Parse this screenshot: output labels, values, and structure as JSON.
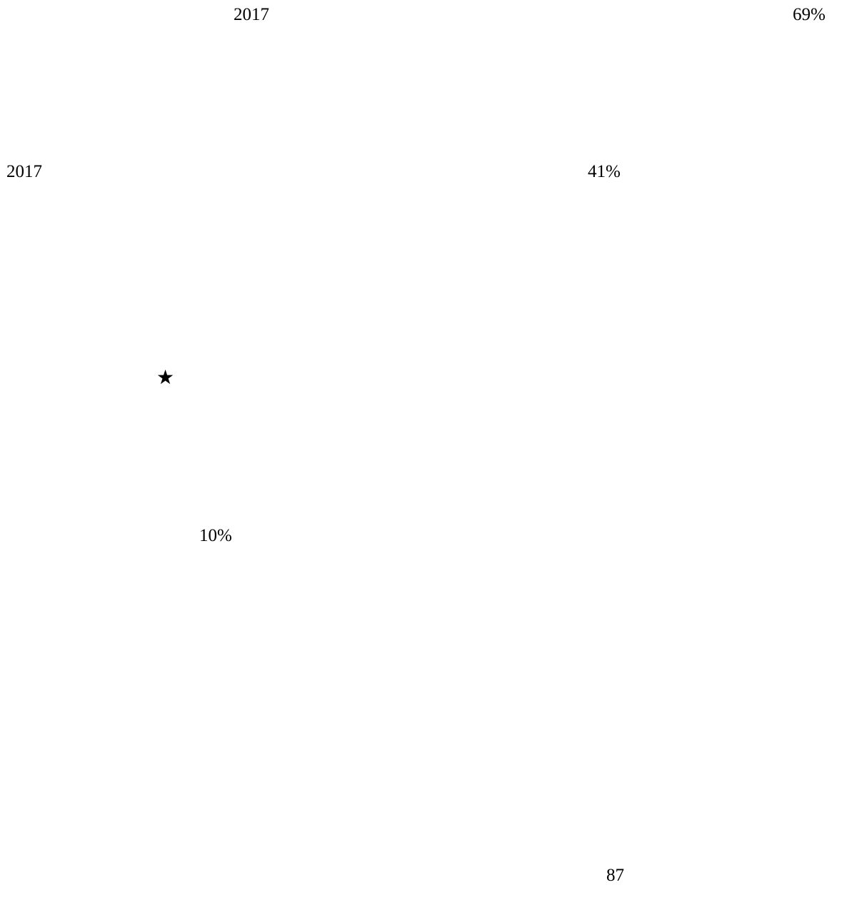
{
  "page": {
    "year_top": "2017",
    "percent_top_right": "69%",
    "year_left": "2017",
    "percent_middle": "41%",
    "star_glyph": "★",
    "percent_lower": "10%",
    "page_number": "87"
  },
  "colors": {
    "text": "#000000",
    "background": "#ffffff"
  }
}
